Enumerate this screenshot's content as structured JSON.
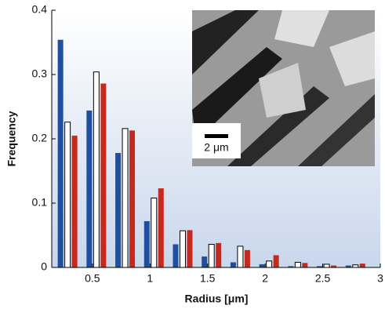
{
  "chart_data": {
    "type": "bar",
    "x": [
      0.25,
      0.5,
      0.75,
      1,
      1.25,
      1.5,
      1.75,
      2,
      2.25,
      2.5,
      2.75
    ],
    "series": [
      {
        "color": "#1f4f9f",
        "values": [
          0.354,
          0.244,
          0.178,
          0.072,
          0.036,
          0.017,
          0.008,
          0.005,
          0.002,
          0.002,
          0.003
        ]
      },
      {
        "color": "#ffffff",
        "values": [
          0.226,
          0.304,
          0.216,
          0.108,
          0.057,
          0.036,
          0.033,
          0.01,
          0.008,
          0.005,
          0.004
        ]
      },
      {
        "color": "#c62a1e",
        "values": [
          0.205,
          0.286,
          0.213,
          0.123,
          0.058,
          0.038,
          0.027,
          0.019,
          0.007,
          0.003,
          0.006
        ]
      }
    ],
    "xlim": [
      0.147,
      3
    ],
    "xticks": [
      0.5,
      1,
      1.5,
      2,
      2.5,
      3
    ],
    "ylim": [
      0,
      0.4
    ],
    "yticks": [
      0,
      0.1,
      0.2,
      0.3,
      0.4
    ],
    "xlabel": "Radius [μm]",
    "ylabel": "Frequency",
    "inset_scale_label": "2 μm"
  }
}
